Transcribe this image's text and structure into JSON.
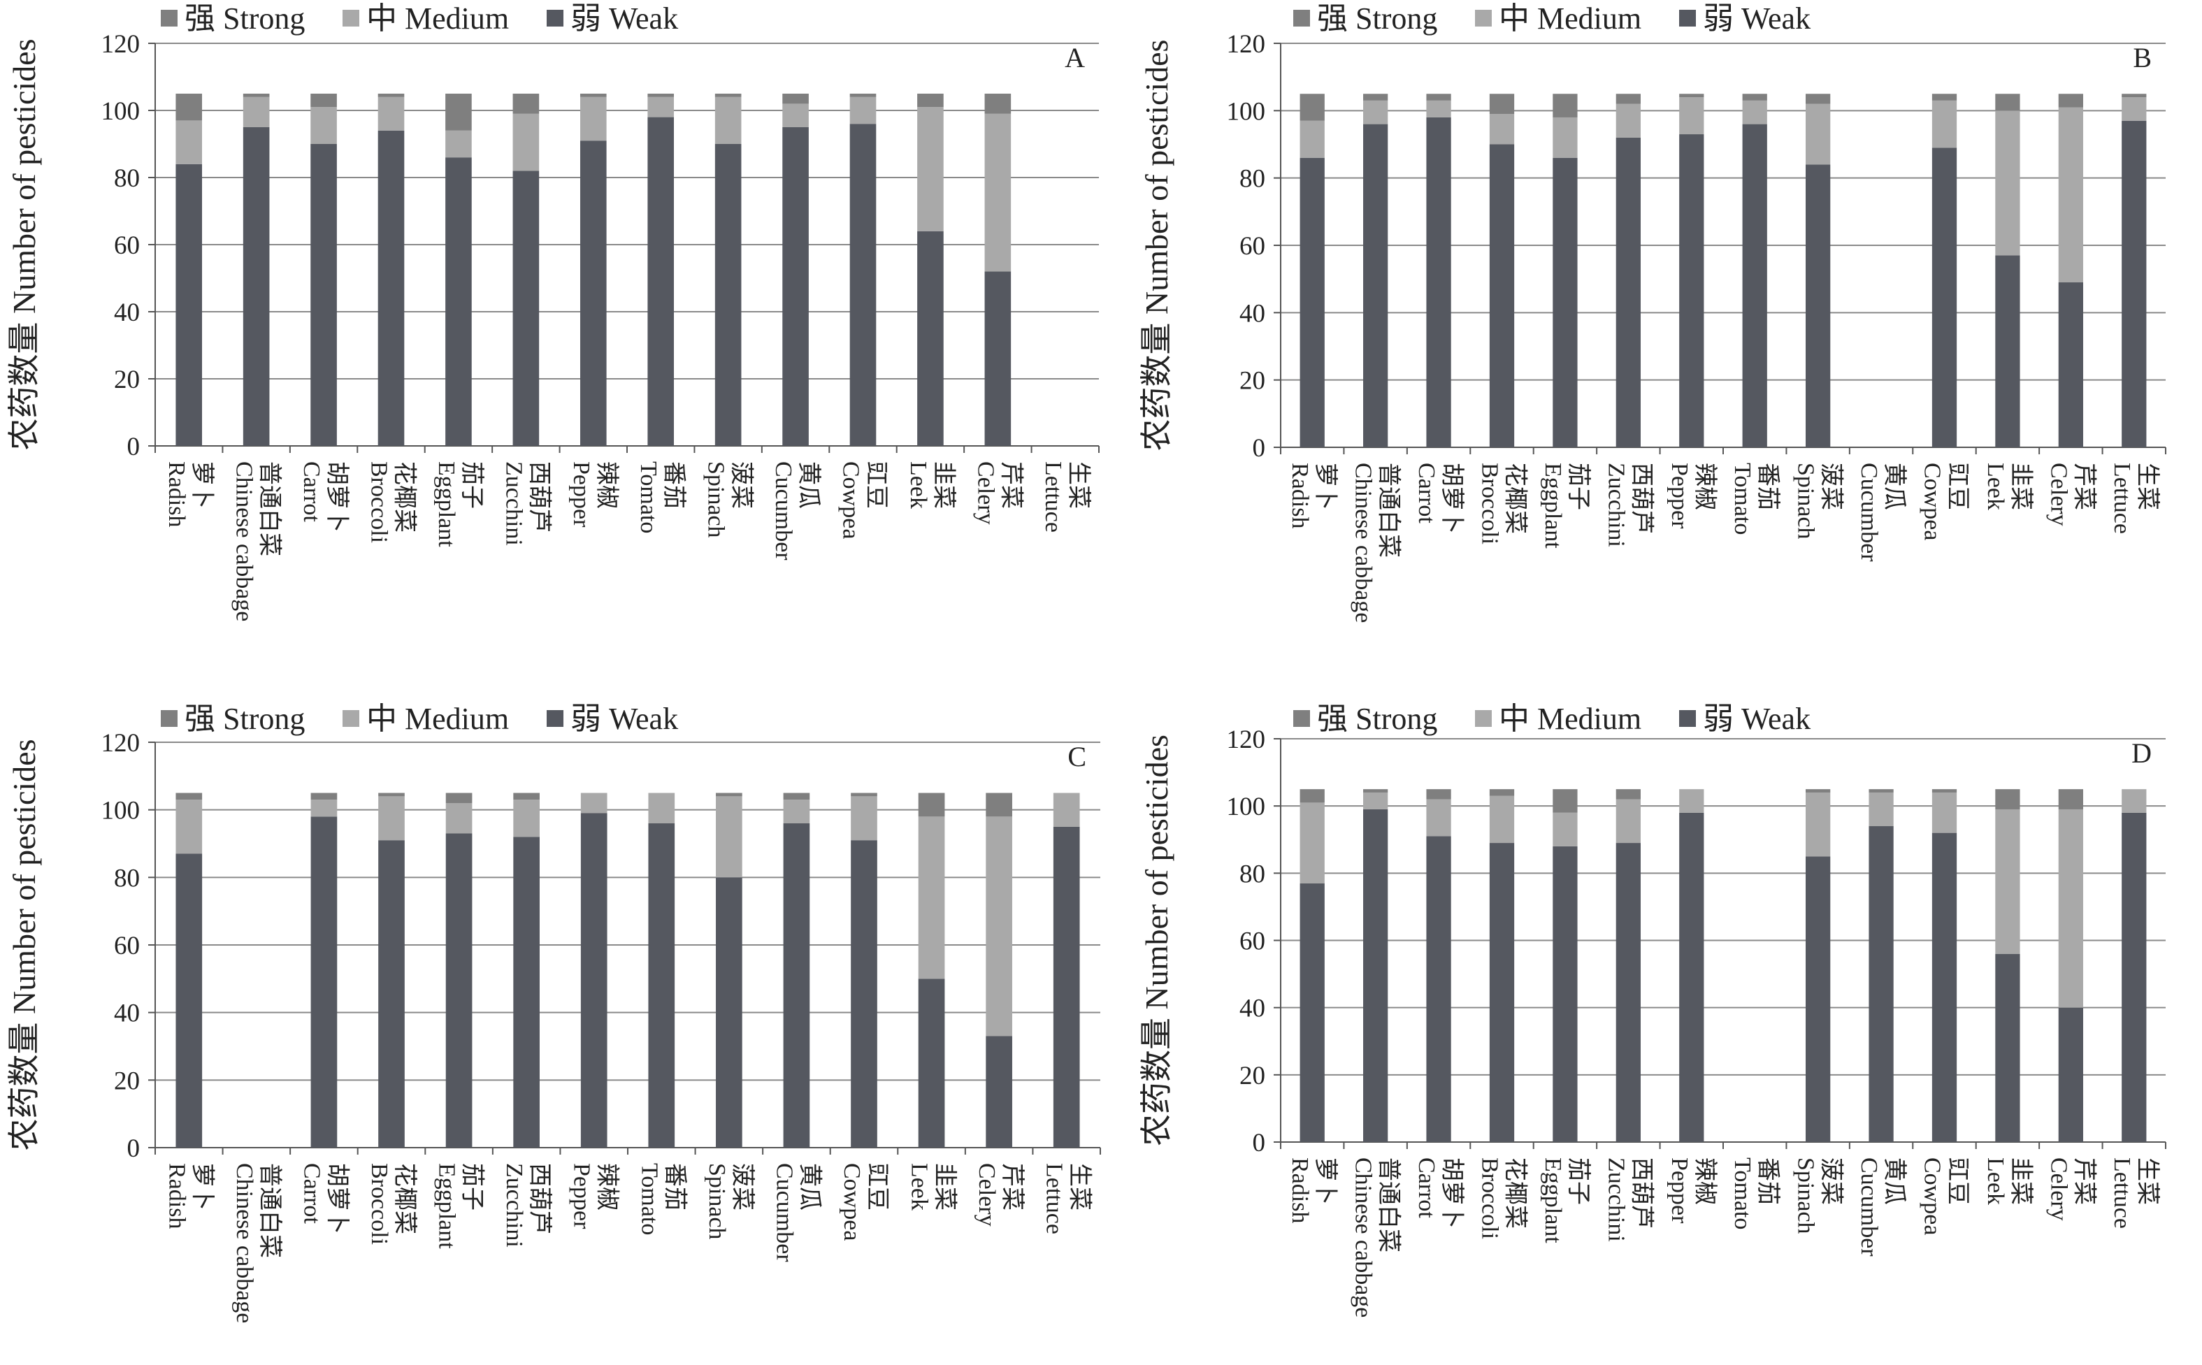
{
  "colors": {
    "strong": "#7f7f7f",
    "medium": "#a9a9a9",
    "weak": "#555860",
    "grid": "#8a8a8a",
    "axis": "#555555"
  },
  "legend": [
    {
      "key": "strong",
      "label": "强 Strong"
    },
    {
      "key": "medium",
      "label": "中 Medium"
    },
    {
      "key": "weak",
      "label": "弱 Weak"
    }
  ],
  "chart_data": [
    {
      "type": "bar",
      "stacked": true,
      "panel": "A",
      "ylabel": "农药数量 Number of pesticides",
      "ylim": [
        0,
        120
      ],
      "yticks": [
        0,
        20,
        40,
        60,
        80,
        100,
        120
      ],
      "grid": true,
      "legend_position": "top-left",
      "categories": [
        "萝卜 Radish",
        "普通白菜 Chinese cabbage",
        "胡萝卜 Carrot",
        "花椰菜 Broccoli",
        "茄子 Eggplant",
        "西葫芦 Zucchini",
        "辣椒 Pepper",
        "番茄 Tomato",
        "菠菜 Spinach",
        "黄瓜 Cucumber",
        "豇豆 Cowpea",
        "韭菜 Leek",
        "芹菜 Celery",
        "生菜 Lettuce"
      ],
      "series": [
        {
          "name": "弱 Weak",
          "key": "weak",
          "values": [
            84,
            95,
            90,
            94,
            86,
            82,
            91,
            98,
            90,
            95,
            96,
            64,
            52,
            0
          ]
        },
        {
          "name": "中 Medium",
          "key": "medium",
          "values": [
            13,
            9,
            11,
            10,
            8,
            17,
            13,
            6,
            14,
            7,
            8,
            37,
            47,
            0
          ]
        },
        {
          "name": "强 Strong",
          "key": "strong",
          "values": [
            8,
            1,
            4,
            1,
            11,
            6,
            1,
            1,
            1,
            3,
            1,
            4,
            6,
            0
          ]
        }
      ]
    },
    {
      "type": "bar",
      "stacked": true,
      "panel": "B",
      "ylabel": "农药数量 Number of pesticides",
      "ylim": [
        0,
        120
      ],
      "yticks": [
        0,
        20,
        40,
        60,
        80,
        100,
        120
      ],
      "grid": true,
      "legend_position": "top-left",
      "categories": [
        "萝卜 Radish",
        "普通白菜 Chinese cabbage",
        "胡萝卜 Carrot",
        "花椰菜 Broccoli",
        "茄子 Eggplant",
        "西葫芦 Zucchini",
        "辣椒 Pepper",
        "番茄 Tomato",
        "菠菜 Spinach",
        "黄瓜 Cucumber",
        "豇豆 Cowpea",
        "韭菜 Leek",
        "芹菜 Celery",
        "生菜 Lettuce"
      ],
      "series": [
        {
          "name": "弱 Weak",
          "key": "weak",
          "values": [
            86,
            96,
            98,
            90,
            86,
            92,
            93,
            96,
            84,
            0,
            89,
            57,
            49,
            97
          ]
        },
        {
          "name": "中 Medium",
          "key": "medium",
          "values": [
            11,
            7,
            5,
            9,
            12,
            10,
            11,
            7,
            18,
            0,
            14,
            43,
            52,
            7
          ]
        },
        {
          "name": "强 Strong",
          "key": "strong",
          "values": [
            8,
            2,
            2,
            6,
            7,
            3,
            1,
            2,
            3,
            0,
            2,
            5,
            4,
            1
          ]
        }
      ]
    },
    {
      "type": "bar",
      "stacked": true,
      "panel": "C",
      "ylabel": "农药数量 Number of pesticides",
      "ylim": [
        0,
        120
      ],
      "yticks": [
        0,
        20,
        40,
        60,
        80,
        100,
        120
      ],
      "grid": true,
      "legend_position": "top-left",
      "categories": [
        "萝卜 Radish",
        "普通白菜 Chinese cabbage",
        "胡萝卜 Carrot",
        "花椰菜 Broccoli",
        "茄子 Eggplant",
        "西葫芦 Zucchini",
        "辣椒 Pepper",
        "番茄 Tomato",
        "菠菜 Spinach",
        "黄瓜 Cucumber",
        "豇豆 Cowpea",
        "韭菜 Leek",
        "芹菜 Celery",
        "生菜 Lettuce"
      ],
      "series": [
        {
          "name": "弱 Weak",
          "key": "weak",
          "values": [
            87,
            0,
            98,
            91,
            93,
            92,
            99,
            96,
            80,
            96,
            91,
            50,
            33,
            95
          ]
        },
        {
          "name": "中 Medium",
          "key": "medium",
          "values": [
            16,
            0,
            5,
            13,
            9,
            11,
            6,
            9,
            24,
            7,
            13,
            48,
            65,
            10
          ]
        },
        {
          "name": "强 Strong",
          "key": "strong",
          "values": [
            2,
            0,
            2,
            1,
            3,
            2,
            0,
            0,
            1,
            2,
            1,
            7,
            7,
            0
          ]
        }
      ]
    },
    {
      "type": "bar",
      "stacked": true,
      "panel": "D",
      "ylabel": "农药数量 Number of pesticides",
      "ylim": [
        0,
        120
      ],
      "yticks": [
        0,
        20,
        40,
        60,
        80,
        100,
        120
      ],
      "grid": true,
      "legend_position": "top-left",
      "categories": [
        "萝卜 Radish",
        "普通白菜 Chinese cabbage",
        "胡萝卜 Carrot",
        "花椰菜 Broccoli",
        "茄子 Eggplant",
        "西葫芦 Zucchini",
        "辣椒 Pepper",
        "番茄 Tomato",
        "菠菜 Spinach",
        "黄瓜 Cucumber",
        "豇豆 Cowpea",
        "韭菜 Leek",
        "芹菜 Celery",
        "生菜 Lettuce"
      ],
      "series": [
        {
          "name": "弱 Weak",
          "key": "weak",
          "values": [
            77,
            99,
            91,
            89,
            88,
            89,
            98,
            0,
            85,
            94,
            92,
            56,
            40,
            98
          ]
        },
        {
          "name": "中 Medium",
          "key": "medium",
          "values": [
            24,
            5,
            11,
            14,
            10,
            13,
            7,
            0,
            19,
            10,
            12,
            43,
            59,
            7
          ]
        },
        {
          "name": "强 Strong",
          "key": "strong",
          "values": [
            4,
            1,
            3,
            2,
            7,
            3,
            0,
            0,
            1,
            1,
            1,
            6,
            6,
            0
          ]
        }
      ]
    }
  ]
}
